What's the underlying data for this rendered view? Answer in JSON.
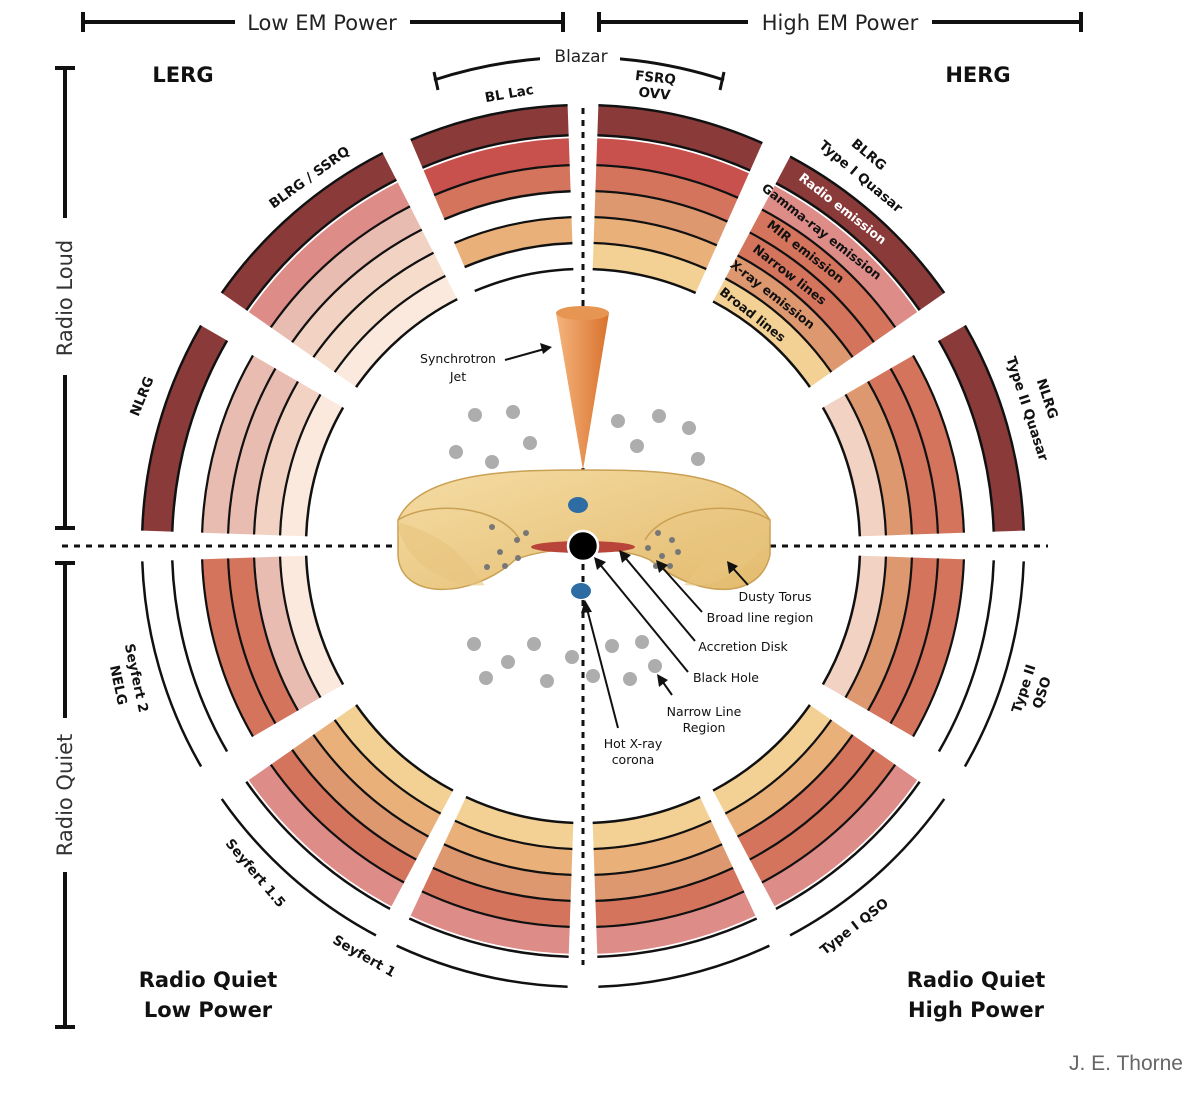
{
  "header": {
    "low_em_power": "Low EM Power",
    "high_em_power": "High EM Power",
    "blazar": "Blazar"
  },
  "side": {
    "radio_loud": "Radio Loud",
    "radio_quiet": "Radio Quiet"
  },
  "quadrants": {
    "lerg": "LERG",
    "herg": "HERG",
    "rq_low_line1": "Radio Quiet",
    "rq_low_line2": "Low Power",
    "rq_high_line1": "Radio Quiet",
    "rq_high_line2": "High Power"
  },
  "segments": {
    "bl_lac": "BL Lac",
    "fsrq": "FSRQ",
    "ovv": "OVV",
    "blrg_ssrq": "BLRG / SSRQ",
    "blrg": "BLRG",
    "type1_quasar": "Type I Quasar",
    "nlrg_left": "NLRG",
    "nlrg_right": "NLRG",
    "type2_quasar": "Type II Quasar",
    "seyfert2": "Seyfert 2",
    "nelg": "NELG",
    "type2": "Type II",
    "qso": "QSO",
    "seyfert15": "Seyfert 1.5",
    "seyfert1": "Seyfert 1",
    "type1_qso": "Type I QSO"
  },
  "bands": [
    "Radio emission",
    "Gamma-ray emission",
    "MIR emission",
    "Narrow lines",
    "X-ray emission",
    "Broad lines"
  ],
  "center_labels": {
    "synchrotron": "Synchrotron",
    "jet": "Jet",
    "dusty_torus": "Dusty Torus",
    "broad_line_region": "Broad line region",
    "accretion_disk": "Accretion Disk",
    "black_hole": "Black Hole",
    "narrow_line": "Narrow Line",
    "region": "Region",
    "hot_xray": "Hot X-ray",
    "corona": "corona"
  },
  "credit": "J. E. Thorne",
  "colors": {
    "radio": "#8b3a3a",
    "gamma": "#c9514d",
    "mir": "#d4745c",
    "narrow": "#de9870",
    "xray": "#eab07a",
    "broad": "#f3d194",
    "pale_radio": "#dd8c88",
    "pale_gamma": "#e9bcb1",
    "pale_mir": "#f1d2c3",
    "pale_narrow": "#f5dccb",
    "pale_xray": "#fae9dc",
    "torus_light": "#f0d08f",
    "torus_dark": "#deb56a",
    "jet": "#e08a45",
    "disk": "#b8443a",
    "corona": "#2e6da4",
    "nlr_dot": "#adadad"
  },
  "segment_bands": [
    {
      "name": "segment-bl-lac",
      "bands": [
        "radio",
        "gamma",
        "mir",
        null,
        "xray",
        null
      ]
    },
    {
      "name": "segment-fsrq-ovv",
      "bands": [
        "radio",
        "gamma",
        "mir",
        "narrow",
        "xray",
        "broad"
      ]
    },
    {
      "name": "segment-blrg-type1-quasar",
      "bands": [
        "radio",
        "pale_radio",
        "mir",
        "mir",
        "narrow",
        "broad"
      ]
    },
    {
      "name": "segment-nlrg-type2-quasar",
      "bands": [
        "radio",
        null,
        "mir",
        "mir",
        "narrow",
        "pale_mir"
      ]
    },
    {
      "name": "segment-type2-qso",
      "bands": [
        null,
        null,
        "mir",
        "mir",
        "narrow",
        "pale_mir"
      ]
    },
    {
      "name": "segment-type1-qso",
      "bands": [
        null,
        "pale_radio",
        "mir",
        "mir",
        "xray",
        "broad"
      ]
    },
    {
      "name": "segment-seyfert1-right",
      "bands": [
        null,
        "pale_radio",
        "mir",
        "narrow",
        "xray",
        "broad"
      ]
    },
    {
      "name": "segment-seyfert1-left",
      "bands": [
        null,
        "pale_radio",
        "mir",
        "narrow",
        "xray",
        "broad"
      ]
    },
    {
      "name": "segment-seyfert15",
      "bands": [
        null,
        "pale_radio",
        "mir",
        "narrow",
        "xray",
        "broad"
      ]
    },
    {
      "name": "segment-seyfert2-nelg",
      "bands": [
        null,
        null,
        "mir",
        "mir",
        "pale_gamma",
        "pale_xray"
      ]
    },
    {
      "name": "segment-nlrg-left",
      "bands": [
        "radio",
        null,
        "pale_gamma",
        "pale_gamma",
        "pale_mir",
        "pale_xray"
      ]
    },
    {
      "name": "segment-blrg-ssrq",
      "bands": [
        "radio",
        "pale_radio",
        "pale_gamma",
        "pale_mir",
        "pale_narrow",
        "pale_xray"
      ]
    }
  ]
}
